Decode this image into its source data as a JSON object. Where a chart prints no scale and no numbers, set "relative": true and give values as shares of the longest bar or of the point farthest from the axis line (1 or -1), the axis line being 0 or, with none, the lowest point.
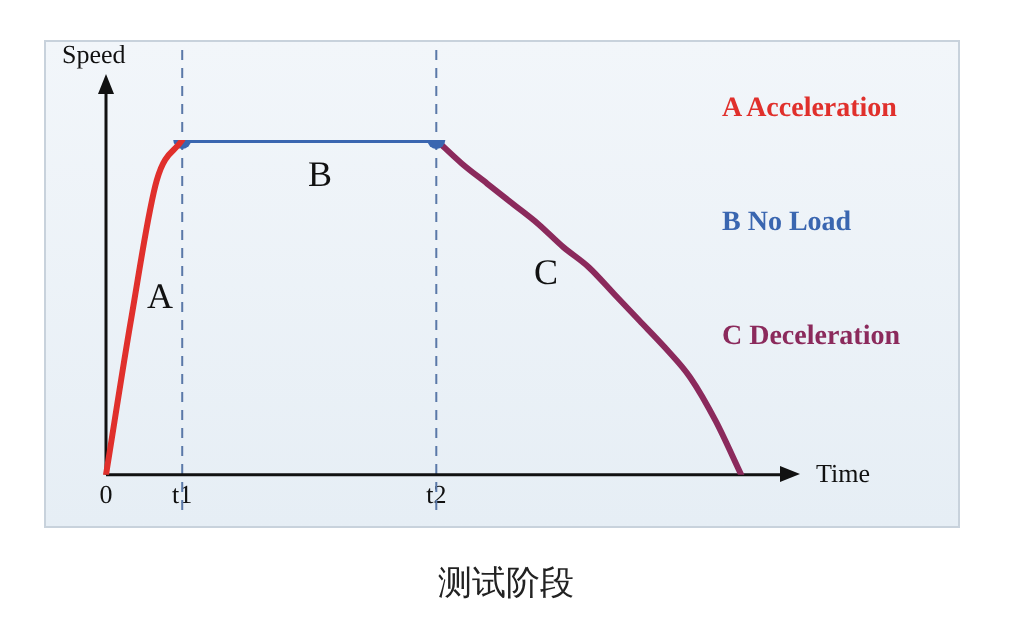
{
  "chart_data": {
    "type": "line",
    "relative": true,
    "xlabel": "Time",
    "ylabel": "Speed",
    "categories": [
      "0",
      null,
      null,
      "t1",
      null,
      null,
      null,
      null,
      null,
      null,
      null,
      null,
      null,
      "t2",
      null,
      null,
      null,
      null,
      null,
      null,
      null,
      null,
      null,
      null,
      null,
      null,
      null,
      null
    ],
    "grid": false,
    "legend": "right",
    "line_style": "solid",
    "series": [
      {
        "name": "A Acceleration",
        "color": "#e0302c",
        "marker": "none",
        "values": [
          0,
          0.47,
          0.88,
          1,
          null,
          null,
          null,
          null,
          null,
          null,
          null,
          null,
          null,
          null,
          null,
          null,
          null,
          null,
          null,
          null,
          null,
          null,
          null,
          null,
          null,
          null,
          null,
          null
        ]
      },
      {
        "name": "B No Load",
        "color": "#3a66b0",
        "marker": "circle",
        "values": [
          null,
          null,
          null,
          1,
          null,
          null,
          null,
          null,
          null,
          null,
          null,
          null,
          null,
          1,
          null,
          null,
          null,
          null,
          null,
          null,
          null,
          null,
          null,
          null,
          null,
          null,
          null,
          null
        ]
      },
      {
        "name": "C Deceleration",
        "color": "#8b2a5c",
        "marker": "none",
        "values": [
          null,
          null,
          null,
          null,
          null,
          null,
          null,
          null,
          null,
          null,
          null,
          null,
          null,
          1,
          0.93,
          0.87,
          0.81,
          0.75,
          0.68,
          0.62,
          0.54,
          0.46,
          0.38,
          0.29,
          0.16,
          0,
          null,
          null
        ]
      }
    ],
    "ref_lines": [
      {
        "axis": "x",
        "value": "t1",
        "color": "#5a78a8",
        "line_style": "dashed"
      },
      {
        "axis": "x",
        "value": "t2",
        "color": "#5a78a8",
        "line_style": "dashed"
      }
    ],
    "annotations": [
      "A",
      "B",
      "C",
      "测试阶段"
    ]
  }
}
